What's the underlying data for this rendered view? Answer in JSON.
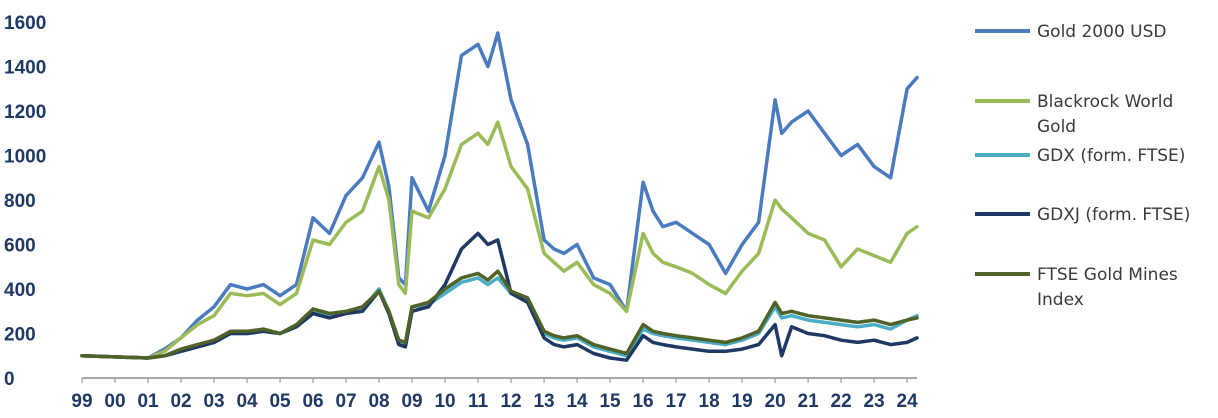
{
  "chart_data": {
    "type": "line",
    "title": "",
    "xlabel": "",
    "ylabel": "",
    "ylim": [
      0,
      1600
    ],
    "yticks": [
      "0",
      "200",
      "400",
      "600",
      "800",
      "1000",
      "1200",
      "1400",
      "1600"
    ],
    "categories": [
      "99",
      "00",
      "01",
      "02",
      "03",
      "04",
      "05",
      "06",
      "07",
      "08",
      "09",
      "10",
      "11",
      "12",
      "13",
      "14",
      "15",
      "16",
      "17",
      "18",
      "19",
      "20",
      "21",
      "22",
      "23",
      "24"
    ],
    "grid": false,
    "legend_position": "right",
    "x": [
      1999.0,
      2000.0,
      2001.0,
      2001.5,
      2002.0,
      2002.5,
      2003.0,
      2003.5,
      2004.0,
      2004.5,
      2005.0,
      2005.5,
      2006.0,
      2006.5,
      2007.0,
      2007.5,
      2008.0,
      2008.3,
      2008.6,
      2008.8,
      2009.0,
      2009.5,
      2010.0,
      2010.5,
      2011.0,
      2011.3,
      2011.6,
      2012.0,
      2012.5,
      2013.0,
      2013.3,
      2013.6,
      2014.0,
      2014.5,
      2015.0,
      2015.5,
      2016.0,
      2016.3,
      2016.6,
      2017.0,
      2017.5,
      2018.0,
      2018.5,
      2019.0,
      2019.5,
      2020.0,
      2020.2,
      2020.5,
      2021.0,
      2021.5,
      2022.0,
      2022.5,
      2023.0,
      2023.5,
      2024.0,
      2024.3
    ],
    "series": [
      {
        "name": "Gold 2000 USD",
        "color": "#4a7bbf",
        "values": [
          100,
          95,
          90,
          130,
          180,
          260,
          320,
          420,
          400,
          420,
          370,
          420,
          720,
          650,
          820,
          900,
          1060,
          860,
          450,
          420,
          900,
          750,
          1000,
          1450,
          1500,
          1400,
          1550,
          1250,
          1050,
          620,
          580,
          560,
          600,
          450,
          420,
          300,
          880,
          750,
          680,
          700,
          650,
          600,
          470,
          600,
          700,
          1250,
          1100,
          1150,
          1200,
          1100,
          1000,
          1050,
          950,
          900,
          1300,
          1350
        ]
      },
      {
        "name": "Blackrock World Gold",
        "color": "#9bbb59",
        "values": [
          100,
          95,
          90,
          120,
          180,
          240,
          280,
          380,
          370,
          380,
          330,
          380,
          620,
          600,
          700,
          750,
          950,
          800,
          420,
          380,
          750,
          720,
          850,
          1050,
          1100,
          1050,
          1150,
          950,
          850,
          560,
          520,
          480,
          520,
          420,
          380,
          300,
          650,
          560,
          520,
          500,
          470,
          420,
          380,
          480,
          560,
          800,
          760,
          720,
          650,
          620,
          500,
          580,
          550,
          520,
          650,
          680
        ]
      },
      {
        "name": "GDX (form. FTSE)",
        "color": "#4bacc6",
        "values": [
          100,
          95,
          90,
          100,
          120,
          140,
          160,
          200,
          200,
          210,
          200,
          230,
          300,
          280,
          300,
          310,
          400,
          300,
          160,
          150,
          320,
          330,
          380,
          430,
          450,
          420,
          450,
          380,
          350,
          200,
          180,
          170,
          180,
          140,
          120,
          100,
          220,
          200,
          190,
          180,
          170,
          160,
          150,
          170,
          200,
          320,
          270,
          280,
          260,
          250,
          240,
          230,
          240,
          220,
          260,
          280
        ]
      },
      {
        "name": "GDXJ (form. FTSE)",
        "color": "#1f3864",
        "values": [
          100,
          95,
          90,
          100,
          120,
          140,
          160,
          200,
          200,
          210,
          200,
          230,
          290,
          270,
          290,
          300,
          390,
          290,
          150,
          140,
          300,
          320,
          420,
          580,
          650,
          600,
          620,
          380,
          340,
          180,
          150,
          140,
          150,
          110,
          90,
          80,
          190,
          160,
          150,
          140,
          130,
          120,
          120,
          130,
          150,
          240,
          100,
          230,
          200,
          190,
          170,
          160,
          170,
          150,
          160,
          180
        ]
      },
      {
        "name": "FTSE Gold Mines Index",
        "color": "#4f6228",
        "values": [
          100,
          95,
          90,
          100,
          130,
          150,
          170,
          210,
          210,
          220,
          200,
          240,
          310,
          290,
          300,
          320,
          390,
          300,
          170,
          160,
          320,
          340,
          400,
          450,
          470,
          440,
          480,
          390,
          360,
          210,
          190,
          180,
          190,
          150,
          130,
          110,
          240,
          210,
          200,
          190,
          180,
          170,
          160,
          180,
          210,
          340,
          290,
          300,
          280,
          270,
          260,
          250,
          260,
          240,
          260,
          270
        ]
      }
    ]
  }
}
